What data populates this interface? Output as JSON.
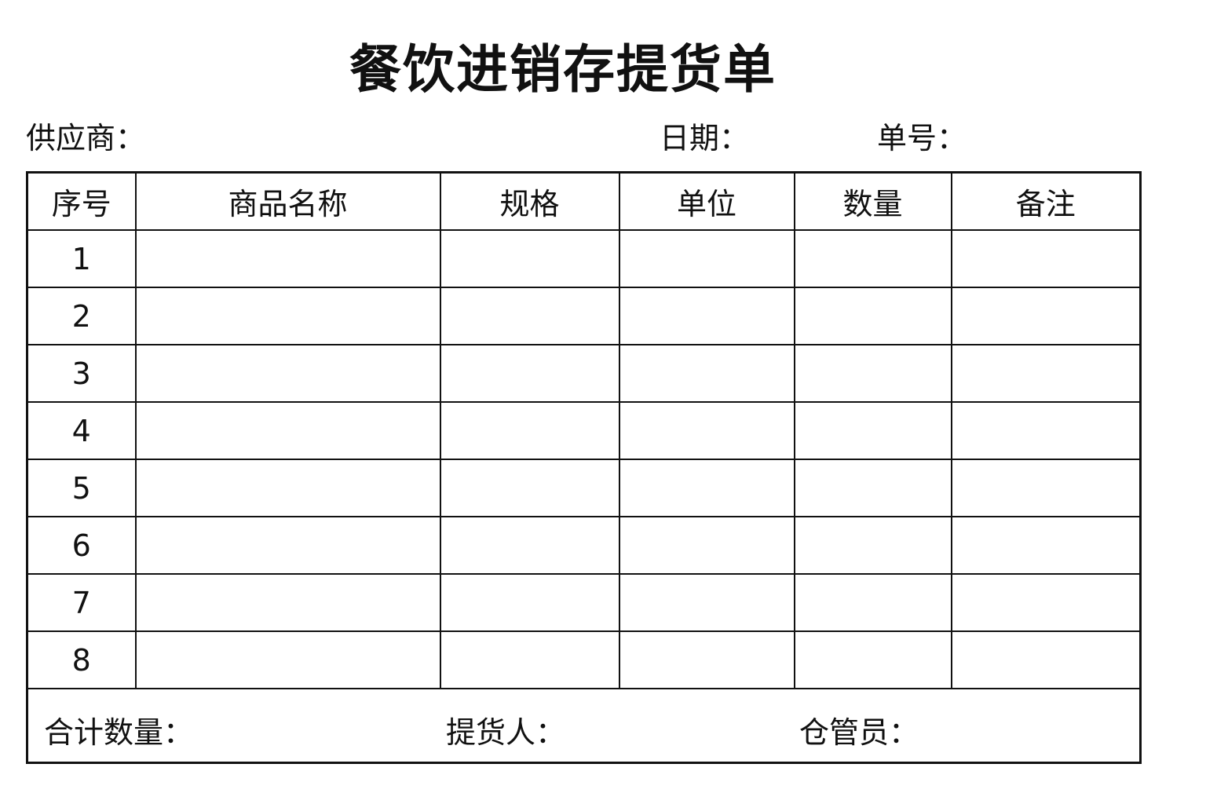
{
  "title": "餐饮进销存提货单",
  "meta": {
    "supplier": "供应商：",
    "date": "日期：",
    "order_no": "单号："
  },
  "table": {
    "headers": [
      "序号",
      "商品名称",
      "规格",
      "单位",
      "数量",
      "备注"
    ],
    "rows": [
      "1",
      "2",
      "3",
      "4",
      "5",
      "6",
      "7",
      "8"
    ]
  },
  "footer": {
    "total_qty": "合计数量：",
    "picker": "提货人：",
    "warehouse_keeper": "仓管员："
  }
}
